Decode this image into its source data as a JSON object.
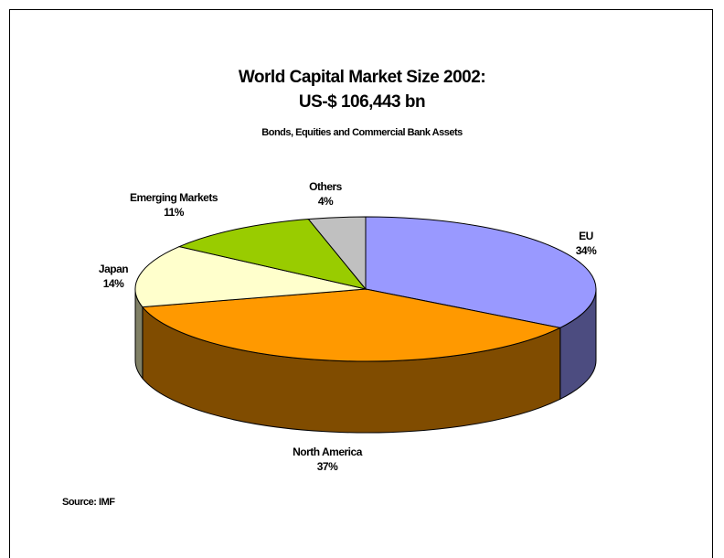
{
  "chart_data": {
    "type": "pie",
    "title": "World Capital Market Size 2002:",
    "title_line2": "US-$ 106,443 bn",
    "subtitle": "Bonds, Equities and Commercial Bank Assets",
    "source": "Source: IMF",
    "style": "3d-tilted",
    "slices": [
      {
        "label": "EU",
        "value": 34,
        "display": "34%",
        "color": "#9999FF",
        "side_color": "#4C4C80"
      },
      {
        "label": "North America",
        "value": 37,
        "display": "37%",
        "color": "#FF9900",
        "side_color": "#804C00"
      },
      {
        "label": "Japan",
        "value": 14,
        "display": "14%",
        "color": "#FFFFCC",
        "side_color": "#808066"
      },
      {
        "label": "Emerging Markets",
        "value": 11,
        "display": "11%",
        "color": "#99CC00",
        "side_color": "#4C6600"
      },
      {
        "label": "Others",
        "value": 4,
        "display": "4%",
        "color": "#C0C0C0",
        "side_color": "#606060"
      }
    ]
  }
}
